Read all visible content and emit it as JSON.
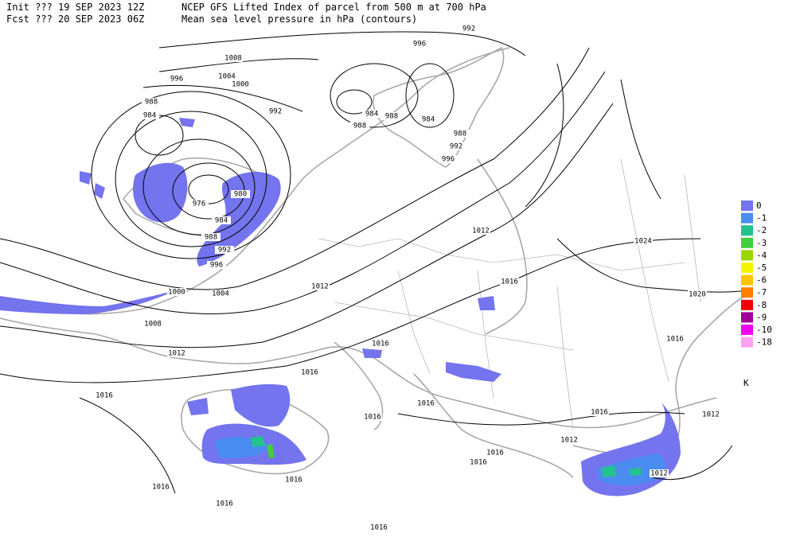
{
  "header": {
    "line1": [
      "Init  ??? 19 SEP 2023 12Z",
      "NCEP GFS Lifted Index of parcel from 500 m at 700 hPa"
    ],
    "line2": [
      "Fcst ??? 20 SEP 2023 06Z",
      "Mean sea level pressure in hPa (contours)"
    ]
  },
  "contour_labels": [
    "992",
    "996",
    "1008",
    "1004",
    "996",
    "1000",
    "988",
    "992",
    "984",
    "984",
    "988",
    "984",
    "988",
    "988",
    "992",
    "996",
    "980",
    "976",
    "984",
    "988",
    "992",
    "996",
    "1012",
    "1024",
    "1016",
    "1012",
    "1000",
    "1004",
    "1020",
    "1008",
    "1016",
    "1016",
    "1012",
    "1016",
    "1016",
    "1016",
    "1016",
    "1016",
    "1012",
    "1012",
    "1016",
    "1016",
    "1012",
    "1016",
    "1016",
    "1016",
    "1016"
  ],
  "legend": {
    "unit": "K",
    "items": [
      {
        "label": "0",
        "color": "#7474ee"
      },
      {
        "label": "-1",
        "color": "#4b8cf0"
      },
      {
        "label": "-2",
        "color": "#22c38a"
      },
      {
        "label": "-3",
        "color": "#3fcf3f"
      },
      {
        "label": "-4",
        "color": "#9ad600"
      },
      {
        "label": "-5",
        "color": "#f5f500"
      },
      {
        "label": "-6",
        "color": "#ffc400"
      },
      {
        "label": "-7",
        "color": "#ff8000"
      },
      {
        "label": "-8",
        "color": "#f00000"
      },
      {
        "label": "-9",
        "color": "#a0009a"
      },
      {
        "label": "-10",
        "color": "#f000f0"
      },
      {
        "label": "-18",
        "color": "#ffa0f5"
      }
    ]
  }
}
